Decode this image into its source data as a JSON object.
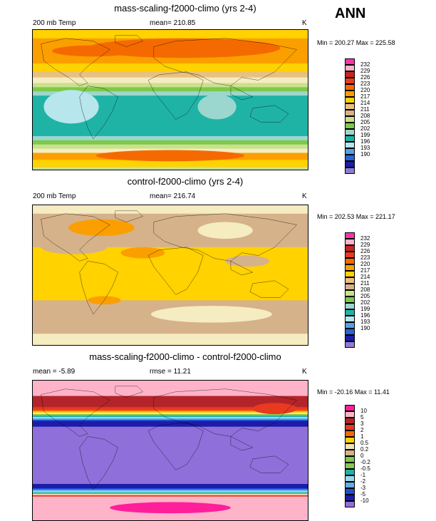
{
  "season": "ANN",
  "palette_temp": [
    "#ff33aa",
    "#ffb3c9",
    "#cc2222",
    "#e83a1f",
    "#f56a00",
    "#fb9f00",
    "#ffd200",
    "#e8c07f",
    "#d6b28a",
    "#c8e28c",
    "#7ec84a",
    "#9bd7cf",
    "#1fb3a6",
    "#b7e6ec",
    "#4fa3e6",
    "#2a63d9",
    "#1c1ca8",
    "#8f7ad6"
  ],
  "palette_diff": [
    "#ff1f9a",
    "#ffb3c9",
    "#b3242a",
    "#e83a1f",
    "#f56a00",
    "#ffd200",
    "#f3e2b8",
    "#d6b28a",
    "#7ec84a",
    "#88c850",
    "#1fb3a6",
    "#9bd7ee",
    "#62aee3",
    "#1f4fd6",
    "#1c1ca8",
    "#8f6fd9"
  ],
  "panels": [
    {
      "title": "mass-scaling-f2000-climo (yrs 2-4)",
      "left_label": "200 mb Temp",
      "center_label": "mean= 210.85",
      "units": "K",
      "minmax": "Min = 200.27 Max = 225.58",
      "legend": [
        "232",
        "229",
        "226",
        "223",
        "220",
        "217",
        "214",
        "211",
        "208",
        "205",
        "202",
        "199",
        "196",
        "193",
        "190"
      ],
      "bands": [
        {
          "from": 0,
          "to": 6,
          "c": "#ffd200"
        },
        {
          "from": 6,
          "to": 24,
          "c": "#fb9f00"
        },
        {
          "from": 24,
          "to": 30,
          "c": "#ffd200"
        },
        {
          "from": 30,
          "to": 34,
          "c": "#e8c07f"
        },
        {
          "from": 34,
          "to": 38,
          "c": "#f6ecc2"
        },
        {
          "from": 38,
          "to": 41,
          "c": "#c8e28c"
        },
        {
          "from": 41,
          "to": 44,
          "c": "#7ec84a"
        },
        {
          "from": 44,
          "to": 47,
          "c": "#9bd7cf"
        },
        {
          "from": 47,
          "to": 76,
          "c": "#1fb3a6"
        },
        {
          "from": 76,
          "to": 79,
          "c": "#9bd7cf"
        },
        {
          "from": 79,
          "to": 82,
          "c": "#7ec84a"
        },
        {
          "from": 82,
          "to": 85,
          "c": "#c8e28c"
        },
        {
          "from": 85,
          "to": 88,
          "c": "#f6ecc2"
        },
        {
          "from": 88,
          "to": 93,
          "c": "#fb9f00"
        },
        {
          "from": 93,
          "to": 98,
          "c": "#ffd200"
        },
        {
          "from": 98,
          "to": 101,
          "c": "#c8e28c"
        }
      ],
      "blobs": [
        {
          "cx": 55,
          "cy": 13,
          "rx": 35,
          "ry": 7,
          "c": "#f56a00"
        },
        {
          "cx": 22,
          "cy": 15,
          "rx": 15,
          "ry": 4,
          "c": "#f56a00"
        },
        {
          "cx": 50,
          "cy": 90,
          "rx": 27,
          "ry": 4,
          "c": "#f56a00"
        },
        {
          "cx": 14,
          "cy": 55,
          "rx": 10,
          "ry": 12,
          "c": "#b7e6ec"
        },
        {
          "cx": 67,
          "cy": 55,
          "rx": 7,
          "ry": 9,
          "c": "#9bd7cf"
        }
      ]
    },
    {
      "title": "control-f2000-climo (yrs 2-4)",
      "left_label": "200 mb Temp",
      "center_label": "mean= 216.74",
      "units": "K",
      "minmax": "Min = 202.53 Max = 221.17",
      "legend": [
        "232",
        "229",
        "226",
        "223",
        "220",
        "217",
        "214",
        "211",
        "208",
        "205",
        "202",
        "199",
        "196",
        "193",
        "190"
      ],
      "bands": [
        {
          "from": 0,
          "to": 6,
          "c": "#f6ecc2"
        },
        {
          "from": 6,
          "to": 30,
          "c": "#d6b28a"
        },
        {
          "from": 30,
          "to": 68,
          "c": "#ffd200"
        },
        {
          "from": 68,
          "to": 92,
          "c": "#d6b28a"
        },
        {
          "from": 92,
          "to": 101,
          "c": "#f6ecc2"
        }
      ],
      "blobs": [
        {
          "cx": 70,
          "cy": 18,
          "rx": 10,
          "ry": 6,
          "c": "#f6ecc2"
        },
        {
          "cx": 25,
          "cy": 16,
          "rx": 12,
          "ry": 6,
          "c": "#fb9f00"
        },
        {
          "cx": 15,
          "cy": 30,
          "rx": 12,
          "ry": 5,
          "c": "#d6b28a"
        },
        {
          "cx": 40,
          "cy": 34,
          "rx": 8,
          "ry": 4,
          "c": "#fb9f00"
        },
        {
          "cx": 26,
          "cy": 68,
          "rx": 6,
          "ry": 3,
          "c": "#fb9f00"
        },
        {
          "cx": 65,
          "cy": 78,
          "rx": 22,
          "ry": 6,
          "c": "#f6ecc2"
        },
        {
          "cx": 78,
          "cy": 40,
          "rx": 8,
          "ry": 4,
          "c": "#d6b28a"
        }
      ]
    },
    {
      "title": "mass-scaling-f2000-climo - control-f2000-climo",
      "left_label": "mean =  -5.89",
      "center_label": "rmse =  11.21",
      "units": "K",
      "minmax": "Min = -20.16 Max =  11.41",
      "legend": [
        "10",
        "5",
        "3",
        "2",
        "1",
        "0.5",
        "0.2",
        "0",
        "-0.2",
        "-0.5",
        "-1",
        "-2",
        "-3",
        "-5",
        "-10"
      ],
      "bands": [
        {
          "from": 0,
          "to": 11,
          "c": "#ffb3c9"
        },
        {
          "from": 11,
          "to": 19,
          "c": "#b3242a"
        },
        {
          "from": 19,
          "to": 21,
          "c": "#e83a1f"
        },
        {
          "from": 21,
          "to": 22,
          "c": "#f56a00"
        },
        {
          "from": 22,
          "to": 23,
          "c": "#ffd200"
        },
        {
          "from": 23,
          "to": 24,
          "c": "#f3e2b8"
        },
        {
          "from": 24,
          "to": 25,
          "c": "#7ec84a"
        },
        {
          "from": 25,
          "to": 26,
          "c": "#1fb3a6"
        },
        {
          "from": 26,
          "to": 27,
          "c": "#9bd7ee"
        },
        {
          "from": 27,
          "to": 28,
          "c": "#62aee3"
        },
        {
          "from": 28,
          "to": 29,
          "c": "#1f4fd6"
        },
        {
          "from": 29,
          "to": 33,
          "c": "#1c1ca8"
        },
        {
          "from": 33,
          "to": 74,
          "c": "#8f6fd9"
        },
        {
          "from": 74,
          "to": 77,
          "c": "#1c1ca8"
        },
        {
          "from": 77,
          "to": 78,
          "c": "#1f4fd6"
        },
        {
          "from": 78,
          "to": 79,
          "c": "#62aee3"
        },
        {
          "from": 79,
          "to": 80,
          "c": "#9bd7ee"
        },
        {
          "from": 80,
          "to": 81,
          "c": "#1fb3a6"
        },
        {
          "from": 81,
          "to": 82,
          "c": "#f3e2b8"
        },
        {
          "from": 82,
          "to": 83,
          "c": "#e83a1f"
        },
        {
          "from": 83,
          "to": 101,
          "c": "#ffb3c9"
        }
      ],
      "blobs": [
        {
          "cx": 50,
          "cy": 91,
          "rx": 22,
          "ry": 4,
          "c": "#ff1f9a"
        },
        {
          "cx": 88,
          "cy": 20,
          "rx": 8,
          "ry": 4,
          "c": "#e83a1f"
        }
      ]
    }
  ]
}
